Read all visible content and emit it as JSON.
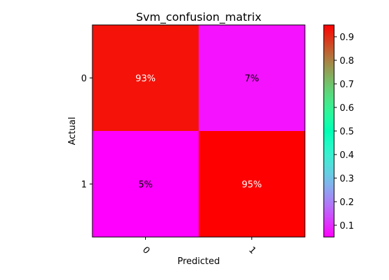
{
  "chart_data": {
    "type": "heatmap",
    "title": "Svm_confusion_matrix",
    "xlabel": "Predicted",
    "ylabel": "Actual",
    "x_categories": [
      "0",
      "1"
    ],
    "y_categories": [
      "0",
      "1"
    ],
    "values": [
      [
        0.93,
        0.07
      ],
      [
        0.05,
        0.95
      ]
    ],
    "cell_labels": [
      [
        "93%",
        "7%"
      ],
      [
        "5%",
        "95%"
      ]
    ],
    "colormap": "rainbow",
    "colorbar": {
      "range": [
        0.05,
        0.95
      ],
      "ticks": [
        0.1,
        0.2,
        0.3,
        0.4,
        0.5,
        0.6,
        0.7,
        0.8,
        0.9
      ],
      "tick_labels": [
        "0.1",
        "0.2",
        "0.3",
        "0.4",
        "0.5",
        "0.6",
        "0.7",
        "0.8",
        "0.9"
      ]
    },
    "grid": false
  }
}
